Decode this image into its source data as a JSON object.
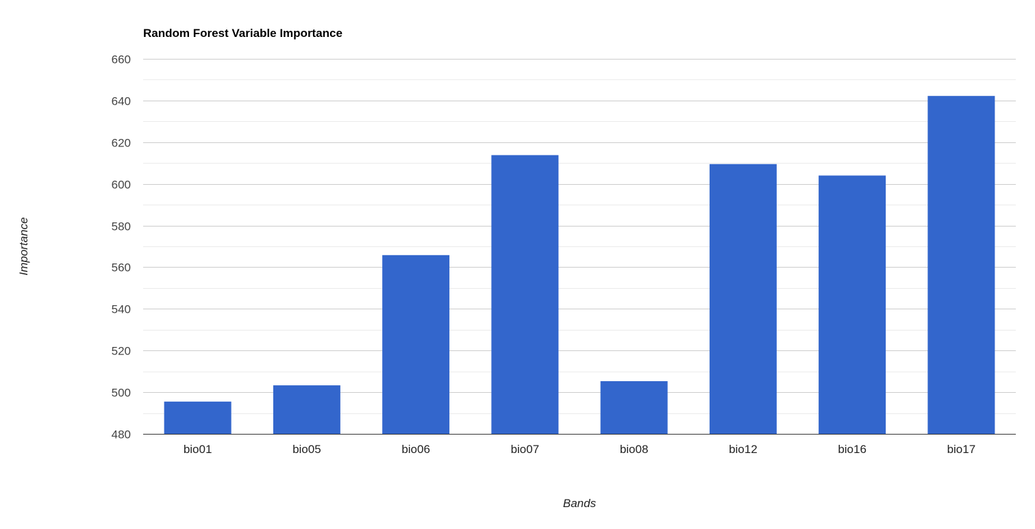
{
  "chart_data": {
    "type": "bar",
    "title": "Random Forest Variable Importance",
    "xlabel": "Bands",
    "ylabel": "Importance",
    "categories": [
      "bio01",
      "bio05",
      "bio06",
      "bio07",
      "bio08",
      "bio12",
      "bio16",
      "bio17"
    ],
    "values": [
      495.5,
      503.3,
      565.8,
      613.8,
      505.3,
      609.5,
      604.0,
      642.2
    ],
    "ylim": [
      480,
      660
    ],
    "yticks": [
      480,
      500,
      520,
      540,
      560,
      580,
      600,
      620,
      640,
      660
    ],
    "grid": true,
    "legend": "none",
    "colors": {
      "bar": "#3366cc",
      "major_grid": "#cccccc",
      "minor_grid": "#ebebeb",
      "baseline": "#333333"
    }
  }
}
